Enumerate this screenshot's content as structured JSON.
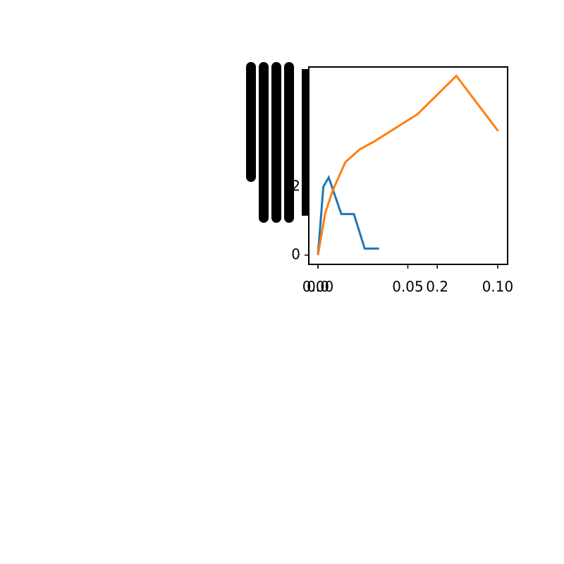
{
  "chart_data": {
    "type": "line",
    "series": [
      {
        "color": "#1f77b4",
        "x": [
          0,
          0.003,
          0.006,
          0.013,
          0.02,
          0.026,
          0.034
        ],
        "values": [
          0,
          2.0,
          2.27,
          1.2,
          1.2,
          0.19,
          0.19
        ]
      },
      {
        "color": "#ff7f0e",
        "axis": "x2",
        "x": [
          0,
          0.012,
          0.025,
          0.046,
          0.07,
          0.094,
          0.167,
          0.232,
          0.302
        ],
        "values": [
          0,
          1.22,
          1.9,
          2.72,
          3.09,
          3.32,
          4.12,
          5.24,
          3.63
        ]
      }
    ],
    "xlim": [
      -0.0051,
      0.1055
    ],
    "xticks": [
      {
        "value": 0,
        "label": "0.00"
      },
      {
        "value": 0.05,
        "label": "0.05"
      },
      {
        "value": 0.1,
        "label": "0.10"
      }
    ],
    "x2lim": [
      -0.0154,
      0.318
    ],
    "x2ticks": [
      {
        "value": 0,
        "label": "0.0"
      },
      {
        "value": 0.2,
        "label": "0.2"
      }
    ],
    "ylim": [
      -0.27,
      5.5
    ],
    "yticks": [
      0,
      2
    ]
  }
}
